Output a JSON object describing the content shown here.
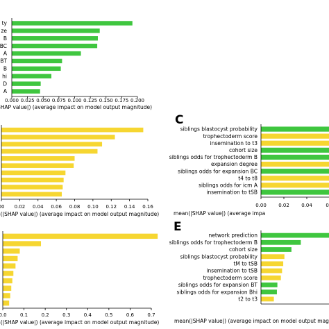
{
  "colors": {
    "green": "#3fc63f",
    "yellow": "#f6d631",
    "axis": "#000000"
  },
  "chart_data": [
    {
      "id": "top-left",
      "panel_label": "",
      "type": "bar",
      "orientation": "horizontal",
      "bar_colors": [
        "green",
        "green",
        "green",
        "green",
        "green",
        "green",
        "green",
        "green",
        "green",
        "green"
      ],
      "categories": [
        "ty",
        "ze",
        "B",
        "BC",
        "A",
        "BT",
        "B",
        "hi",
        "D",
        "A"
      ],
      "values": [
        0.192,
        0.14,
        0.137,
        0.136,
        0.11,
        0.08,
        0.078,
        0.063,
        0.046,
        0.045
      ],
      "xlim": [
        0,
        0.2
      ],
      "ticks": [
        "0.000",
        "0.025",
        "0.050",
        "0.075",
        "0.100",
        "0.125",
        "0.150",
        "0.175",
        "0.200"
      ],
      "xlabel": "SHAP value|) (average impact on model output magnitude)"
    },
    {
      "id": "middle-left",
      "panel_label": "",
      "type": "bar",
      "orientation": "horizontal",
      "bar_colors": [
        "yellow",
        "yellow",
        "yellow",
        "yellow",
        "yellow",
        "yellow",
        "yellow",
        "yellow",
        "yellow",
        "yellow"
      ],
      "categories": [
        "",
        "",
        "",
        "",
        "",
        "",
        "",
        "",
        "",
        ""
      ],
      "values": [
        0.155,
        0.124,
        0.11,
        0.105,
        0.08,
        0.079,
        0.07,
        0.068,
        0.067,
        0.066
      ],
      "xlim": [
        0,
        0.16
      ],
      "ticks": [
        "00",
        "0.02",
        "0.04",
        "0.06",
        "0.08",
        "0.10",
        "0.12",
        "0.14",
        "0.16"
      ],
      "xlabel": "e(|SHAP value|) (average impact on model output magnitude)"
    },
    {
      "id": "bottom-left",
      "panel_label": "",
      "type": "bar",
      "orientation": "horizontal",
      "bar_colors": [
        "yellow",
        "yellow",
        "yellow",
        "yellow",
        "yellow",
        "yellow",
        "yellow",
        "yellow",
        "yellow",
        "yellow"
      ],
      "categories": [
        "",
        "",
        "",
        "",
        "",
        "",
        "",
        "",
        "",
        ""
      ],
      "values": [
        0.73,
        0.18,
        0.08,
        0.07,
        0.06,
        0.05,
        0.045,
        0.04,
        0.035,
        0.03
      ],
      "xlim": [
        0,
        0.7
      ],
      "ticks": [
        "0.0",
        "0.1",
        "0.2",
        "0.3",
        "0.4",
        "0.5",
        "0.6",
        "0.7"
      ],
      "xlabel": "n(|SHAP value|) (average impact on model output magnitude)"
    },
    {
      "id": "panel-c",
      "panel_label": "C",
      "type": "bar",
      "orientation": "horizontal",
      "bar_colors": [
        "green",
        "yellow",
        "yellow",
        "green",
        "green",
        "yellow",
        "green",
        "yellow",
        "yellow",
        "green"
      ],
      "categories": [
        "siblings blastocyst probability",
        "trophectoderm score",
        "insemination to t3",
        "cohort size",
        "siblings odds for trophectoderm B",
        "expansion degree",
        "siblings odds for expansion BC",
        "t4 to t8",
        "siblings odds for icm A",
        "insemination to tSB"
      ],
      "values": [
        0.3,
        0.3,
        0.3,
        0.3,
        0.3,
        0.3,
        0.3,
        0.3,
        0.3,
        0.3
      ],
      "xlim": [
        0,
        0.3
      ],
      "ticks": [
        "0.00",
        "0.02",
        "0.04",
        "0.0"
      ],
      "xlabel": "mean(|SHAP value|) (average impa"
    },
    {
      "id": "panel-e",
      "panel_label": "E",
      "type": "bar",
      "orientation": "horizontal",
      "bar_colors": [
        "green",
        "green",
        "green",
        "yellow",
        "yellow",
        "yellow",
        "yellow",
        "green",
        "green",
        "yellow"
      ],
      "categories": [
        "network prediction",
        "siblings odds for trophectoderm B",
        "cohort size",
        "siblings blastocyst probability",
        "tM to tSB",
        "insemination to tSB",
        "trophectoderm score",
        "siblings odds for expansion BT",
        "siblings odds for expansion Bhi",
        "t2 to t3"
      ],
      "values": [
        0.3,
        0.17,
        0.13,
        0.1,
        0.095,
        0.09,
        0.085,
        0.07,
        0.068,
        0.055
      ],
      "xlim": [
        0,
        0.32
      ],
      "ticks": [],
      "xlabel": "mean(|SHAP value|) (average impact on model output magnitude)"
    }
  ]
}
